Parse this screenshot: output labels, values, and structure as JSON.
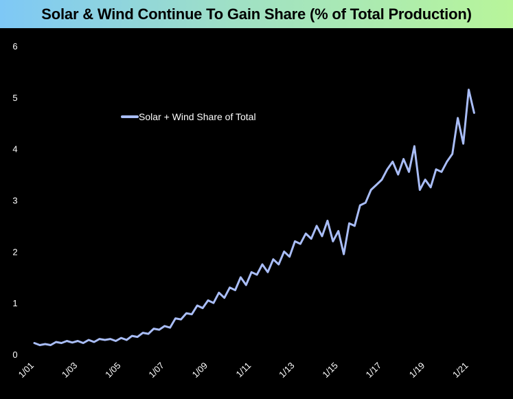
{
  "chart_data": {
    "type": "line",
    "title": "Solar & Wind Continue To Gain Share (% of Total Production)",
    "xlabel": "",
    "ylabel": "",
    "ylim": [
      0,
      6
    ],
    "yticks": [
      "0",
      "1",
      "2",
      "3",
      "4",
      "5",
      "6"
    ],
    "xlim": [
      "2001-01",
      "2021-05"
    ],
    "xticks": [
      "1/01",
      "1/03",
      "1/05",
      "1/07",
      "1/09",
      "1/11",
      "1/13",
      "1/15",
      "1/17",
      "1/19",
      "1/21"
    ],
    "grid": false,
    "legend": {
      "position": "upper-left",
      "entries": [
        "Solar + Wind Share of Total"
      ]
    },
    "colors": {
      "line": "#a9bdf7",
      "background": "#000000",
      "text": "#ffffff"
    },
    "series": [
      {
        "name": "Solar + Wind Share of Total",
        "x": [
          "2001-01",
          "2001-04",
          "2001-07",
          "2001-10",
          "2002-01",
          "2002-04",
          "2002-07",
          "2002-10",
          "2003-01",
          "2003-04",
          "2003-07",
          "2003-10",
          "2004-01",
          "2004-04",
          "2004-07",
          "2004-10",
          "2005-01",
          "2005-04",
          "2005-07",
          "2005-10",
          "2006-01",
          "2006-04",
          "2006-07",
          "2006-10",
          "2007-01",
          "2007-04",
          "2007-07",
          "2007-10",
          "2008-01",
          "2008-04",
          "2008-07",
          "2008-10",
          "2009-01",
          "2009-04",
          "2009-07",
          "2009-10",
          "2010-01",
          "2010-04",
          "2010-07",
          "2010-10",
          "2011-01",
          "2011-04",
          "2011-07",
          "2011-10",
          "2012-01",
          "2012-04",
          "2012-07",
          "2012-10",
          "2013-01",
          "2013-04",
          "2013-07",
          "2013-10",
          "2014-01",
          "2014-04",
          "2014-07",
          "2014-10",
          "2015-01",
          "2015-04",
          "2015-07",
          "2015-10",
          "2016-01",
          "2016-04",
          "2016-07",
          "2016-10",
          "2017-01",
          "2017-04",
          "2017-07",
          "2017-10",
          "2018-01",
          "2018-04",
          "2018-07",
          "2018-10",
          "2019-01",
          "2019-04",
          "2019-07",
          "2019-10",
          "2020-01",
          "2020-04",
          "2020-07",
          "2020-10",
          "2021-01",
          "2021-04"
        ],
        "values": [
          0.22,
          0.18,
          0.2,
          0.18,
          0.24,
          0.22,
          0.26,
          0.23,
          0.26,
          0.22,
          0.28,
          0.24,
          0.3,
          0.28,
          0.3,
          0.26,
          0.32,
          0.28,
          0.36,
          0.34,
          0.42,
          0.4,
          0.5,
          0.48,
          0.55,
          0.52,
          0.7,
          0.68,
          0.8,
          0.78,
          0.95,
          0.9,
          1.05,
          1.0,
          1.2,
          1.1,
          1.3,
          1.25,
          1.5,
          1.35,
          1.6,
          1.55,
          1.75,
          1.6,
          1.85,
          1.75,
          2.0,
          1.9,
          2.2,
          2.15,
          2.35,
          2.25,
          2.5,
          2.3,
          2.6,
          2.2,
          2.4,
          1.95,
          2.55,
          2.5,
          2.9,
          2.95,
          3.2,
          3.3,
          3.4,
          3.6,
          3.75,
          3.5,
          3.8,
          3.55,
          4.05,
          3.2,
          3.4,
          3.25,
          3.6,
          3.55,
          3.75,
          3.9,
          4.6,
          4.1,
          5.15,
          4.7
        ]
      }
    ]
  }
}
